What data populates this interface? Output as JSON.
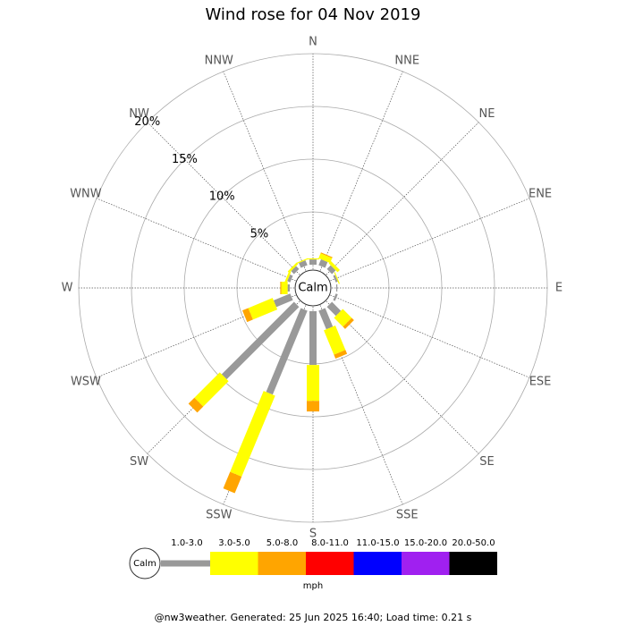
{
  "chart_data": {
    "type": "windrose",
    "title": "Wind rose for 04 Nov 2019",
    "directions": [
      "N",
      "NNE",
      "NE",
      "ENE",
      "E",
      "ESE",
      "SE",
      "SSE",
      "S",
      "SSW",
      "SW",
      "WSW",
      "W",
      "WNW",
      "NW",
      "NNW"
    ],
    "series": [
      {
        "name": "1.0-3.0",
        "color": "#999999",
        "values": [
          0.5,
          0.6,
          0.5,
          0.2,
          0.1,
          0.2,
          1.2,
          1.9,
          5.1,
          8.6,
          9.7,
          1.7,
          0.2,
          0.3,
          0.4,
          0.5
        ]
      },
      {
        "name": "3.0-5.0",
        "color": "#ffff00",
        "values": [
          0.1,
          0.5,
          0.3,
          0.1,
          0,
          0,
          1.2,
          2.5,
          3.4,
          8.3,
          3.4,
          2.5,
          0.6,
          0.2,
          0.2,
          0.1
        ]
      },
      {
        "name": "5.0-8.0",
        "color": "#ffa500",
        "values": [
          0,
          0.1,
          0,
          0,
          0,
          0,
          0.3,
          0.4,
          1.0,
          1.7,
          0.8,
          0.6,
          0.1,
          0,
          0,
          0
        ]
      },
      {
        "name": "8.0-11.0",
        "color": "#ff0000",
        "values": [
          0,
          0,
          0,
          0,
          0,
          0,
          0,
          0,
          0,
          0,
          0,
          0,
          0,
          0,
          0,
          0
        ]
      },
      {
        "name": "11.0-15.0",
        "color": "#0000ff",
        "values": [
          0,
          0,
          0,
          0,
          0,
          0,
          0,
          0,
          0,
          0,
          0,
          0,
          0,
          0,
          0,
          0
        ]
      },
      {
        "name": "15.0-20.0",
        "color": "#a020f0",
        "values": [
          0,
          0,
          0,
          0,
          0,
          0,
          0,
          0,
          0,
          0,
          0,
          0,
          0,
          0,
          0,
          0
        ]
      },
      {
        "name": "20.0-50.0",
        "color": "#000000",
        "values": [
          0,
          0,
          0,
          0,
          0,
          0,
          0,
          0,
          0,
          0,
          0,
          0,
          0,
          0,
          0,
          0
        ]
      }
    ],
    "rlim": [
      0,
      20
    ],
    "rticks": [
      {
        "value": 5,
        "label": "5%"
      },
      {
        "value": 10,
        "label": "10%"
      },
      {
        "value": 15,
        "label": "15%"
      },
      {
        "value": 20,
        "label": "20%"
      }
    ],
    "calm_label": "Calm",
    "unit": "mph",
    "footer": "@nw3weather. Generated: 25 Jun 2025 16:40; Load time: 0.21 s"
  }
}
